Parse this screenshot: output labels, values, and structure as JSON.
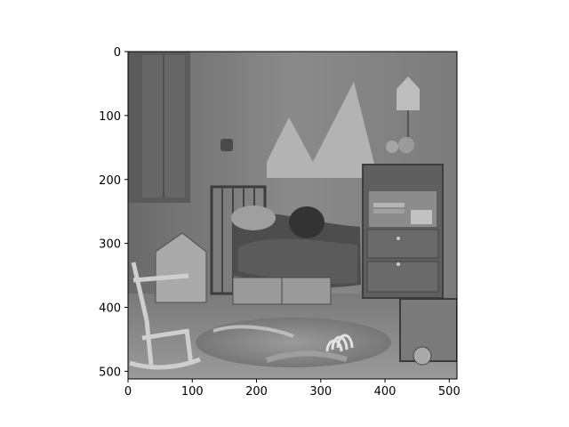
{
  "chart_data": {
    "type": "image",
    "colormap": "gray",
    "image_size": [
      512,
      512
    ],
    "xlim": [
      0,
      512
    ],
    "ylim": [
      512,
      0
    ],
    "x_ticks": [
      0,
      100,
      200,
      300,
      400,
      500
    ],
    "y_ticks": [
      0,
      100,
      200,
      300,
      400,
      500
    ],
    "grid": false,
    "title": "",
    "xlabel": "",
    "ylabel": ""
  }
}
